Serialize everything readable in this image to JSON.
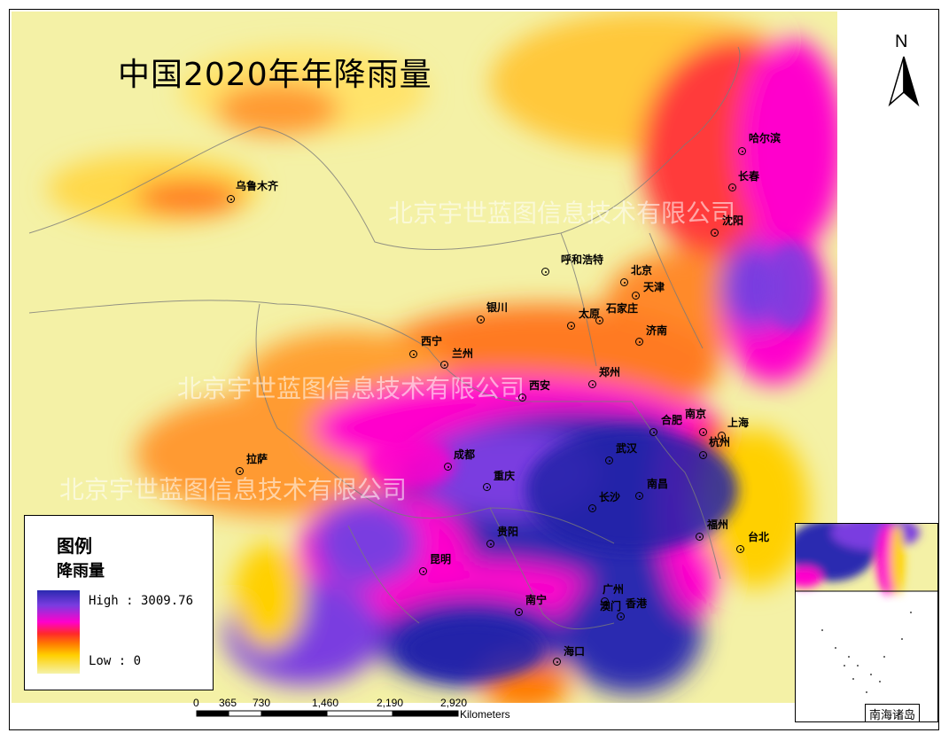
{
  "title": "中国2020年年降雨量",
  "watermarks": [
    "北京宇世蓝图信息技术有限公司",
    "北京宇世蓝图信息技术有限公司",
    "北京宇世蓝图信息技术有限公司"
  ],
  "north_label": "N",
  "legend": {
    "title": "图例",
    "subtitle": "降雨量",
    "high": "High : 3009.76",
    "low": "Low : 0",
    "ramp_colors": [
      "#2a2ab0",
      "#7a3ce0",
      "#ff00cc",
      "#ff2a2a",
      "#ff7a00",
      "#ffd000",
      "#f5f2a8"
    ]
  },
  "scale": {
    "ticks": [
      "0",
      "365",
      "730",
      "1,460",
      "2,190",
      "2,920"
    ],
    "unit": "Kilometers"
  },
  "inset_label": "南海诸岛",
  "cities": [
    "哈尔滨",
    "长春",
    "沈阳",
    "乌鲁木齐",
    "呼和浩特",
    "北京",
    "天津",
    "石家庄",
    "太原",
    "济南",
    "银川",
    "西宁",
    "兰州",
    "郑州",
    "西安",
    "合肥",
    "南京",
    "上海",
    "杭州",
    "武汉",
    "成都",
    "重庆",
    "南昌",
    "长沙",
    "拉萨",
    "福州",
    "台北",
    "贵阳",
    "昆明",
    "广州",
    "南宁",
    "澳门",
    "香港",
    "海口"
  ]
}
